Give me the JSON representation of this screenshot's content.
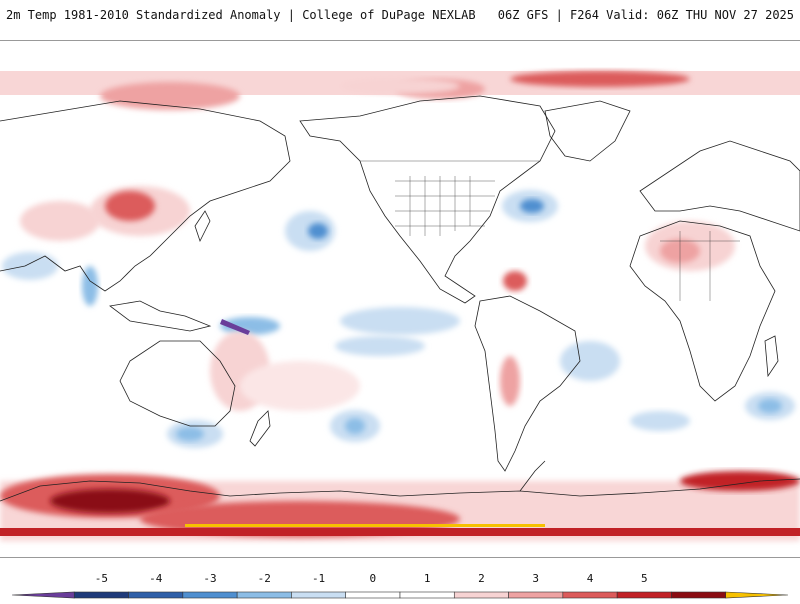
{
  "header": {
    "title": "2m Temp 1981-2010 Standardized Anomaly | College of DuPage NEXLAB",
    "run_info": "06Z GFS | F264 Valid: 06Z THU NOV 27 2025"
  },
  "map": {
    "projection": "equirectangular, Pacific-centered",
    "variable": "2m temperature standardized anomaly"
  },
  "colorbar": {
    "labels": [
      "-5",
      "-4",
      "-3",
      "-2",
      "-1",
      "0",
      "1",
      "2",
      "3",
      "4",
      "5"
    ],
    "bins": [
      {
        "color": "#6a3d9a"
      },
      {
        "color": "#1f3a7a"
      },
      {
        "color": "#2f5fa8"
      },
      {
        "color": "#4f8fd0"
      },
      {
        "color": "#8cbde6"
      },
      {
        "color": "#c9def2"
      },
      {
        "color": "#ffffff"
      },
      {
        "color": "#ffffff"
      },
      {
        "color": "#f7d3d3"
      },
      {
        "color": "#eea2a2"
      },
      {
        "color": "#dc5b5b"
      },
      {
        "color": "#c12126"
      },
      {
        "color": "#8a0c12"
      },
      {
        "color": "#f7c100"
      }
    ]
  }
}
